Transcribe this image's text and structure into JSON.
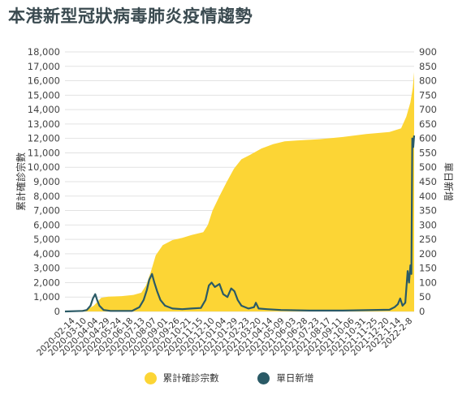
{
  "title": "本港新型冠狀病毒肺炎疫情趨勢",
  "legend": {
    "cumulative_label": "累計確診宗數",
    "daily_label": "單日新增"
  },
  "colors": {
    "cumulative": "#fcd535",
    "daily": "#2a5a66",
    "grid": "#e2e2e2",
    "title": "#3a4a50"
  },
  "chart_data": {
    "type": "area",
    "ylabel_left": "累計確診宗數",
    "ylabel_right": "單日新增",
    "ylim_left": [
      0,
      18000
    ],
    "ylim_right": [
      0,
      900
    ],
    "yticks_left": [
      0,
      1000,
      2000,
      3000,
      4000,
      5000,
      6000,
      7000,
      8000,
      9000,
      10000,
      11000,
      12000,
      13000,
      14000,
      15000,
      16000,
      17000,
      18000
    ],
    "yticks_left_labels": [
      "0",
      "1,000",
      "2,000",
      "3,000",
      "4,000",
      "5,000",
      "6,000",
      "7,000",
      "8,000",
      "9,000",
      "10,000",
      "11,000",
      "12,000",
      "13,000",
      "14,000",
      "15,000",
      "16,000",
      "17,000",
      "18,000"
    ],
    "yticks_right": [
      0,
      50,
      100,
      150,
      200,
      250,
      300,
      350,
      400,
      450,
      500,
      550,
      600,
      650,
      700,
      750,
      800,
      850,
      900
    ],
    "yticks_right_labels": [
      "0",
      "50",
      "100",
      "150",
      "200",
      "250",
      "300",
      "350",
      "400",
      "450",
      "500",
      "550",
      "600",
      "650",
      "700",
      "750",
      "800",
      "850",
      "900"
    ],
    "x_start": "2020-01-23",
    "x_end": "2022-02-11",
    "x_tick_labels": [
      "2020-02-14",
      "2020-03-10",
      "2020-04-04",
      "2020-04-29",
      "2020-05-24",
      "2020-06-18",
      "2020-07-13",
      "2020-08-07",
      "2020-09-01",
      "2020-09-26",
      "2020-10-21",
      "2020-11-15",
      "2020-12-10",
      "2021-01-04",
      "2021-01-29",
      "2021-02-23",
      "2021-03-20",
      "2021-04-14",
      "2021-05-09",
      "2021-06-03",
      "2021-06-28",
      "2021-07-23",
      "2021-08-17",
      "2021-09-11",
      "2021-10-06",
      "2021-10-31",
      "2021-11-25",
      "2021-12-20",
      "2022-1-14",
      "2022-2-8"
    ],
    "series": [
      {
        "name": "累計確診宗數",
        "axis": "left",
        "kind": "area",
        "points": [
          [
            "2020-01-23",
            0
          ],
          [
            "2020-03-10",
            120
          ],
          [
            "2020-03-25",
            400
          ],
          [
            "2020-04-10",
            950
          ],
          [
            "2020-04-25",
            1030
          ],
          [
            "2020-05-24",
            1065
          ],
          [
            "2020-06-18",
            1150
          ],
          [
            "2020-07-05",
            1300
          ],
          [
            "2020-07-15",
            1800
          ],
          [
            "2020-07-25",
            2700
          ],
          [
            "2020-08-05",
            3900
          ],
          [
            "2020-08-20",
            4600
          ],
          [
            "2020-09-10",
            4950
          ],
          [
            "2020-10-01",
            5100
          ],
          [
            "2020-10-21",
            5300
          ],
          [
            "2020-11-15",
            5500
          ],
          [
            "2020-11-25",
            6000
          ],
          [
            "2020-12-05",
            7000
          ],
          [
            "2020-12-20",
            8000
          ],
          [
            "2021-01-04",
            8950
          ],
          [
            "2021-01-20",
            9900
          ],
          [
            "2021-02-05",
            10550
          ],
          [
            "2021-02-23",
            10850
          ],
          [
            "2021-03-20",
            11300
          ],
          [
            "2021-04-14",
            11600
          ],
          [
            "2021-05-09",
            11800
          ],
          [
            "2021-06-03",
            11850
          ],
          [
            "2021-07-23",
            11950
          ],
          [
            "2021-09-11",
            12100
          ],
          [
            "2021-10-31",
            12300
          ],
          [
            "2021-12-20",
            12450
          ],
          [
            "2022-01-14",
            12700
          ],
          [
            "2022-01-25",
            13500
          ],
          [
            "2022-02-03",
            14500
          ],
          [
            "2022-02-08",
            15500
          ],
          [
            "2022-02-11",
            16600
          ]
        ]
      },
      {
        "name": "單日新增",
        "axis": "right",
        "kind": "line",
        "points": [
          [
            "2020-01-23",
            0
          ],
          [
            "2020-03-01",
            2
          ],
          [
            "2020-03-10",
            5
          ],
          [
            "2020-03-18",
            20
          ],
          [
            "2020-03-23",
            45
          ],
          [
            "2020-03-28",
            60
          ],
          [
            "2020-04-01",
            40
          ],
          [
            "2020-04-06",
            20
          ],
          [
            "2020-04-15",
            5
          ],
          [
            "2020-04-30",
            2
          ],
          [
            "2020-06-15",
            2
          ],
          [
            "2020-07-01",
            15
          ],
          [
            "2020-07-10",
            40
          ],
          [
            "2020-07-17",
            75
          ],
          [
            "2020-07-22",
            110
          ],
          [
            "2020-07-28",
            130
          ],
          [
            "2020-08-02",
            100
          ],
          [
            "2020-08-08",
            70
          ],
          [
            "2020-08-15",
            40
          ],
          [
            "2020-08-25",
            20
          ],
          [
            "2020-09-10",
            10
          ],
          [
            "2020-10-01",
            8
          ],
          [
            "2020-10-20",
            10
          ],
          [
            "2020-11-10",
            12
          ],
          [
            "2020-11-20",
            40
          ],
          [
            "2020-11-27",
            90
          ],
          [
            "2020-12-03",
            100
          ],
          [
            "2020-12-10",
            85
          ],
          [
            "2020-12-20",
            95
          ],
          [
            "2020-12-28",
            60
          ],
          [
            "2021-01-06",
            50
          ],
          [
            "2021-01-14",
            80
          ],
          [
            "2021-01-21",
            70
          ],
          [
            "2021-01-28",
            40
          ],
          [
            "2021-02-05",
            20
          ],
          [
            "2021-02-20",
            10
          ],
          [
            "2021-03-04",
            15
          ],
          [
            "2021-03-08",
            30
          ],
          [
            "2021-03-14",
            10
          ],
          [
            "2021-04-01",
            8
          ],
          [
            "2021-05-01",
            5
          ],
          [
            "2021-07-01",
            3
          ],
          [
            "2021-09-11",
            3
          ],
          [
            "2021-12-20",
            6
          ],
          [
            "2021-12-31",
            15
          ],
          [
            "2022-01-07",
            25
          ],
          [
            "2022-01-12",
            45
          ],
          [
            "2022-01-17",
            20
          ],
          [
            "2022-01-23",
            30
          ],
          [
            "2022-01-28",
            140
          ],
          [
            "2022-01-31",
            100
          ],
          [
            "2022-02-03",
            160
          ],
          [
            "2022-02-05",
            130
          ],
          [
            "2022-02-07",
            600
          ],
          [
            "2022-02-09",
            570
          ],
          [
            "2022-02-11",
            610
          ]
        ]
      }
    ]
  }
}
